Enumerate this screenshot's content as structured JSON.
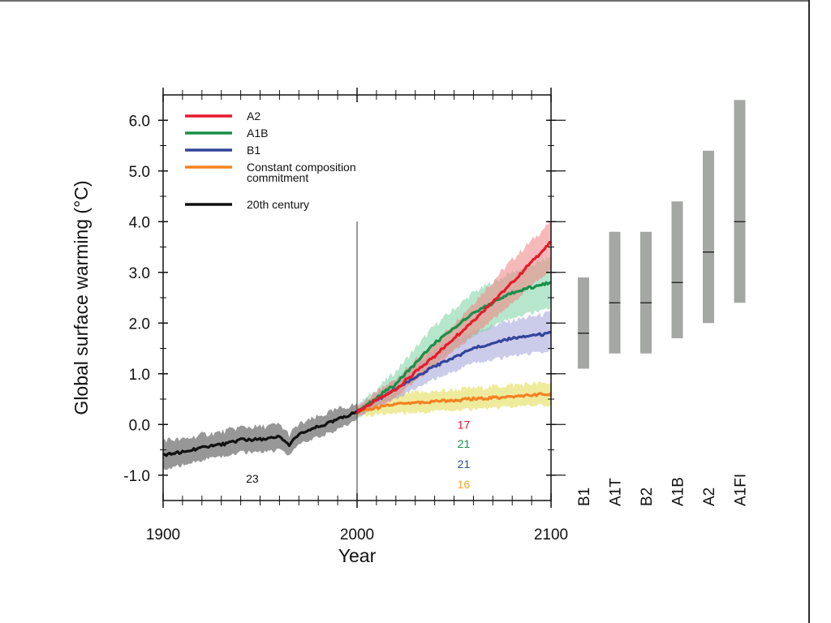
{
  "chart_data": [
    {
      "type": "line",
      "title": "",
      "xlabel": "Year",
      "ylabel": "Global surface warming (°C)",
      "xlim": [
        1900,
        2100
      ],
      "ylim": [
        -1.5,
        6.5
      ],
      "xticks": [
        1900,
        2000,
        2100
      ],
      "xtick_labels": [
        "1900",
        "2000",
        "2100"
      ],
      "yticks": [
        6.0,
        5.0,
        4.0,
        3.0,
        2.0,
        1.0,
        0.0,
        -1.0
      ],
      "ytick_labels": [
        "6.0",
        "5.0",
        "4.0",
        "3.0",
        "2.0",
        "1.0",
        "0.0",
        "-1.0"
      ],
      "grid": false,
      "legend_position": "top-left",
      "series": [
        {
          "name": "A2",
          "color": "#e8192c",
          "band_color": "#f08a8a",
          "x": [
            2000,
            2020,
            2040,
            2060,
            2080,
            2100
          ],
          "y": [
            0.25,
            0.7,
            1.35,
            2.05,
            2.8,
            3.6
          ],
          "lower": [
            0.15,
            0.55,
            1.15,
            1.75,
            2.4,
            3.05
          ],
          "upper": [
            0.35,
            0.9,
            1.6,
            2.4,
            3.25,
            4.0
          ]
        },
        {
          "name": "A1B",
          "color": "#18904a",
          "band_color": "#86d6a8",
          "x": [
            2000,
            2020,
            2040,
            2060,
            2080,
            2100
          ],
          "y": [
            0.25,
            0.8,
            1.6,
            2.2,
            2.6,
            2.8
          ],
          "lower": [
            0.15,
            0.55,
            1.2,
            1.75,
            2.1,
            2.3
          ],
          "upper": [
            0.35,
            1.05,
            1.95,
            2.6,
            3.0,
            3.3
          ]
        },
        {
          "name": "B1",
          "color": "#33449a",
          "band_color": "#a8a8dc",
          "x": [
            2000,
            2020,
            2040,
            2060,
            2080,
            2100
          ],
          "y": [
            0.25,
            0.7,
            1.15,
            1.5,
            1.7,
            1.8
          ],
          "lower": [
            0.15,
            0.5,
            0.9,
            1.2,
            1.35,
            1.45
          ],
          "upper": [
            0.35,
            0.9,
            1.45,
            1.85,
            2.05,
            2.2
          ]
        },
        {
          "name": "Constant composition commitment",
          "legend_lines": [
            "Constant composition",
            "commitment"
          ],
          "color": "#f58220",
          "band_color": "#e4de5a",
          "x": [
            2000,
            2020,
            2040,
            2060,
            2080,
            2100
          ],
          "y": [
            0.25,
            0.4,
            0.45,
            0.5,
            0.55,
            0.6
          ],
          "lower": [
            0.15,
            0.22,
            0.25,
            0.3,
            0.35,
            0.38
          ],
          "upper": [
            0.35,
            0.6,
            0.65,
            0.72,
            0.78,
            0.82
          ]
        },
        {
          "name": "20th century",
          "color": "#111111",
          "band_color": "#8c8c8c",
          "x": [
            1900,
            1910,
            1920,
            1930,
            1940,
            1950,
            1960,
            1965,
            1970,
            1980,
            1990,
            2000
          ],
          "y": [
            -0.6,
            -0.55,
            -0.45,
            -0.4,
            -0.3,
            -0.3,
            -0.25,
            -0.4,
            -0.2,
            -0.05,
            0.1,
            0.25
          ],
          "lower": [
            -0.9,
            -0.8,
            -0.7,
            -0.65,
            -0.55,
            -0.55,
            -0.5,
            -0.6,
            -0.4,
            -0.25,
            -0.1,
            0.1
          ],
          "upper": [
            -0.3,
            -0.3,
            -0.2,
            -0.15,
            -0.05,
            -0.05,
            0.0,
            -0.2,
            0.0,
            0.15,
            0.3,
            0.4
          ]
        }
      ],
      "model_counts": [
        {
          "value": "23",
          "color": "#111111",
          "x": 1946,
          "y": -1.07
        },
        {
          "value": "17",
          "color": "#e8192c",
          "x": 2055,
          "y": 0.0
        },
        {
          "value": "21",
          "color": "#18904a",
          "x": 2055,
          "y": -0.38
        },
        {
          "value": "21",
          "color": "#33449a",
          "x": 2055,
          "y": -0.78
        },
        {
          "value": "16",
          "color": "#f5a623",
          "x": 2055,
          "y": -1.18
        }
      ],
      "vertical_marker_year": 2000
    },
    {
      "type": "bar",
      "title": "",
      "categories": [
        "B1",
        "A1T",
        "B2",
        "A1B",
        "A2",
        "A1FI"
      ],
      "ranges": [
        {
          "low": 1.1,
          "high": 2.9,
          "best": 1.8
        },
        {
          "low": 1.4,
          "high": 3.8,
          "best": 2.4
        },
        {
          "low": 1.4,
          "high": 3.8,
          "best": 2.4
        },
        {
          "low": 1.7,
          "high": 4.4,
          "best": 2.8
        },
        {
          "low": 2.0,
          "high": 5.4,
          "best": 3.4
        },
        {
          "low": 2.4,
          "high": 6.4,
          "best": 4.0
        }
      ],
      "bar_color": "#a5a7a5",
      "best_estimate_color": "#111111",
      "shares_y_axis_with": "Global surface warming (°C)"
    }
  ]
}
